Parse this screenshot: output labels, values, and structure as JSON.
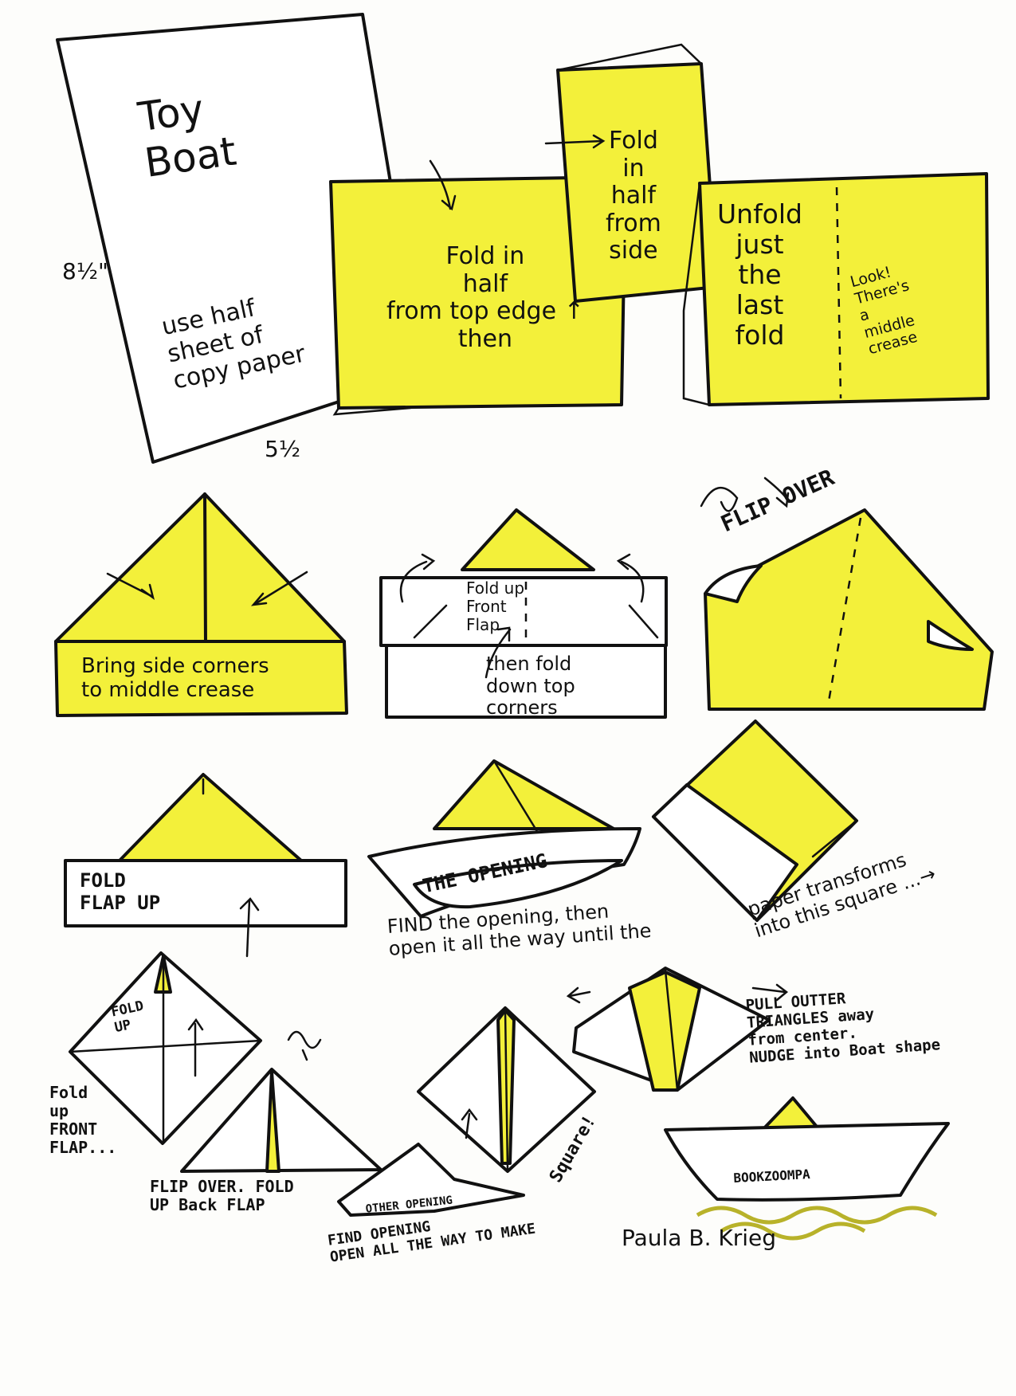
{
  "colors": {
    "paper_yellow": "#f3f03a",
    "ink": "#111111",
    "water": "#b8b22a"
  },
  "title": "Toy\nBoat",
  "dim_height": "8½\"",
  "dim_width": "5½",
  "steps": {
    "paper": "use half\nsheet of\ncopy paper",
    "fold_top": "Fold in\nhalf\nfrom top edge ↑\nthen",
    "fold_side": "Fold\nin\nhalf\nfrom\nside",
    "unfold": "Unfold\njust\nthe\nlast\nfold",
    "crease_note": "Look!\nThere's\na\nmiddle\ncrease",
    "side_corners": "Bring side corners\nto middle crease",
    "front_flap": "Fold up\nFront\nFlap",
    "top_corners": "then fold\ndown top\ncorners",
    "flip_over": "FLIP OVER",
    "flap_up": "FOLD\nFLAP UP",
    "the_opening": "THE OPENING",
    "find_opening": "FIND the opening, then\nopen it all the way until the",
    "transforms": "paper transforms\ninto this square ...→",
    "fold_up_small": "FOLD\nUP",
    "fold_up_front": "Fold\nup\nFRONT\nFLAP...",
    "flip_fold_back": "FLIP OVER. FOLD\nUP Back FLAP",
    "other_opening": "OTHER OPENING",
    "find_opening2": "FIND OPENING\nOPEN ALL THE WAY TO MAKE",
    "square": "Square!",
    "pull": "PULL OUTTER\nTRIANGLES away\nfrom center.\nNUDGE into Boat shape",
    "brand": "BOOKZOOMPA",
    "signature": "Paula B. Krieg"
  }
}
